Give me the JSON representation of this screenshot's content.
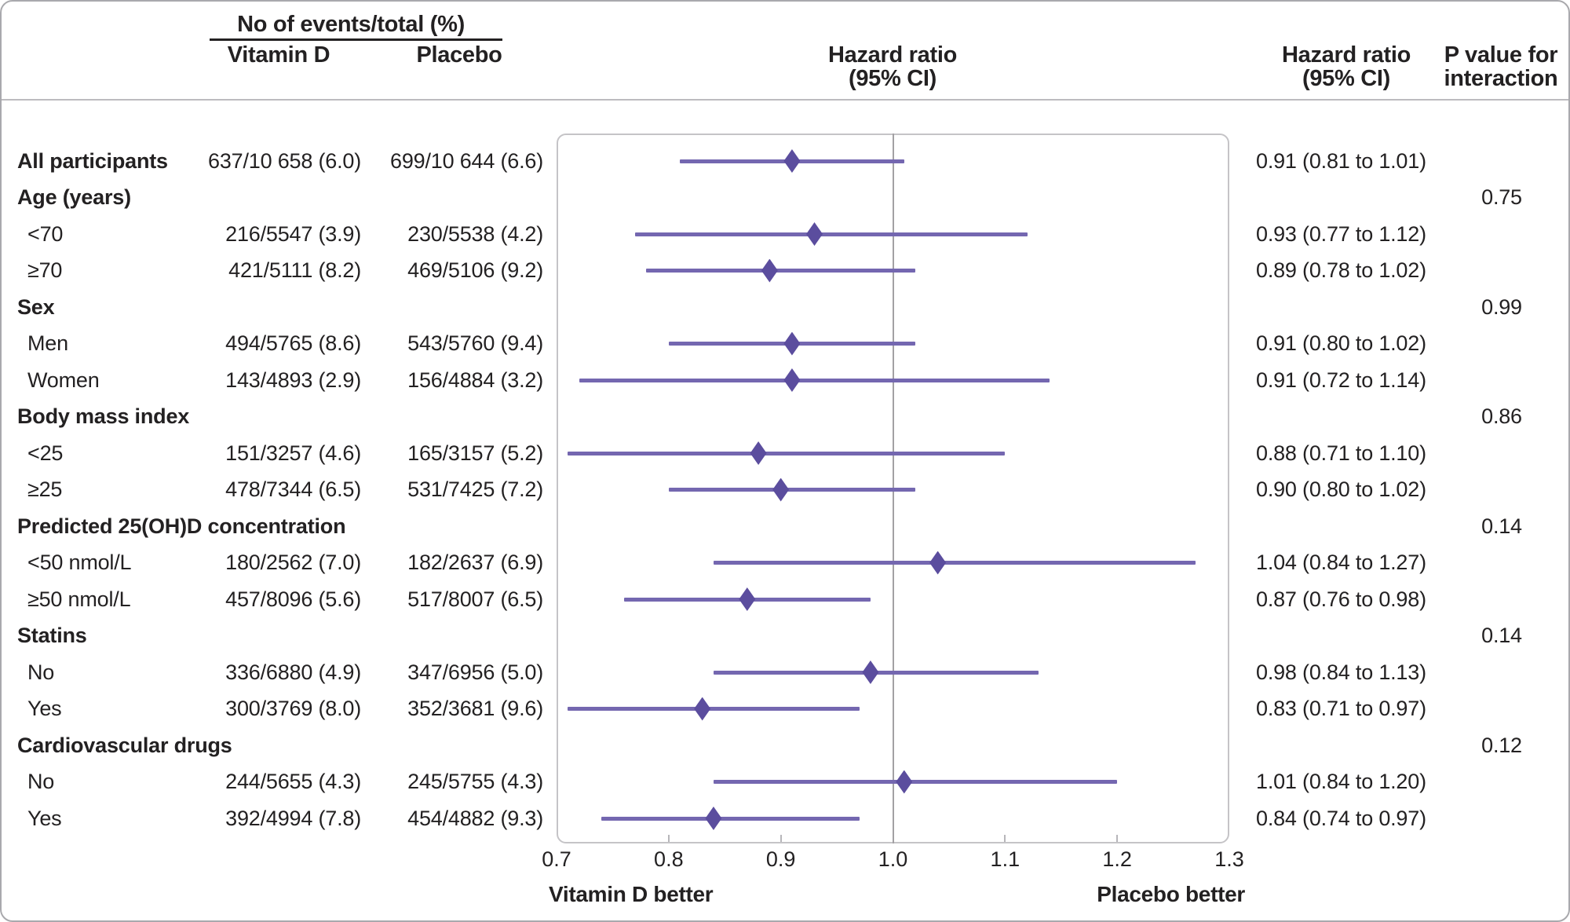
{
  "header": {
    "events_title": "No of events/total (%)",
    "col_vitamin_d": "Vitamin D",
    "col_placebo": "Placebo",
    "plot_title_line1": "Hazard ratio",
    "plot_title_line2": "(95% CI)",
    "hr_col_line1": "Hazard ratio",
    "hr_col_line2": "(95% CI)",
    "p_col_line1": "P value for",
    "p_col_line2": "interaction"
  },
  "colors": {
    "marker": "#5b4d9e",
    "ci_line": "#7467b0",
    "reference_line": "#a3a1a4",
    "plot_border": "#c5c4c7",
    "outer_border": "#a9a9ad",
    "text": "#232122"
  },
  "chart_data": {
    "type": "forest",
    "title": "Hazard ratio (95% CI)",
    "xlim": [
      0.7,
      1.3
    ],
    "tick_values": [
      0.7,
      0.8,
      0.9,
      1.0,
      1.1,
      1.2,
      1.3
    ],
    "tick_labels": [
      "0.7",
      "0.8",
      "0.9",
      "1.0",
      "1.1",
      "1.2",
      "1.3"
    ],
    "tick_marks": [
      0.8,
      0.9,
      1.1,
      1.2
    ],
    "reference_line": 1.0,
    "left_label": "Vitamin D better",
    "right_label": "Placebo better",
    "rows": [
      {
        "type": "data",
        "bold": true,
        "label": "All participants",
        "vitamin_d": "637/10 658 (6.0)",
        "placebo": "699/10 644 (6.6)",
        "hr": 0.91,
        "lo": 0.81,
        "hi": 1.01,
        "hr_text": "0.91 (0.81 to 1.01)",
        "p": ""
      },
      {
        "type": "group",
        "label": "Age (years)",
        "vitamin_d": "",
        "placebo": "",
        "hr_text": "",
        "p": "0.75"
      },
      {
        "type": "data",
        "label": "<70",
        "vitamin_d": "216/5547 (3.9)",
        "placebo": "230/5538 (4.2)",
        "hr": 0.93,
        "lo": 0.77,
        "hi": 1.12,
        "hr_text": "0.93 (0.77 to 1.12)",
        "p": ""
      },
      {
        "type": "data",
        "label": "≥70",
        "vitamin_d": "421/5111 (8.2)",
        "placebo": "469/5106 (9.2)",
        "hr": 0.89,
        "lo": 0.78,
        "hi": 1.02,
        "hr_text": "0.89 (0.78 to 1.02)",
        "p": ""
      },
      {
        "type": "group",
        "label": "Sex",
        "vitamin_d": "",
        "placebo": "",
        "hr_text": "",
        "p": "0.99"
      },
      {
        "type": "data",
        "label": "Men",
        "vitamin_d": "494/5765 (8.6)",
        "placebo": "543/5760 (9.4)",
        "hr": 0.91,
        "lo": 0.8,
        "hi": 1.02,
        "hr_text": "0.91 (0.80 to 1.02)",
        "p": ""
      },
      {
        "type": "data",
        "label": "Women",
        "vitamin_d": "143/4893 (2.9)",
        "placebo": "156/4884 (3.2)",
        "hr": 0.91,
        "lo": 0.72,
        "hi": 1.14,
        "hr_text": "0.91 (0.72 to 1.14)",
        "p": ""
      },
      {
        "type": "group",
        "label": "Body mass index",
        "vitamin_d": "",
        "placebo": "",
        "hr_text": "",
        "p": "0.86"
      },
      {
        "type": "data",
        "label": "<25",
        "vitamin_d": "151/3257 (4.6)",
        "placebo": "165/3157 (5.2)",
        "hr": 0.88,
        "lo": 0.71,
        "hi": 1.1,
        "hr_text": "0.88 (0.71 to 1.10)",
        "p": ""
      },
      {
        "type": "data",
        "label": "≥25",
        "vitamin_d": "478/7344 (6.5)",
        "placebo": "531/7425 (7.2)",
        "hr": 0.9,
        "lo": 0.8,
        "hi": 1.02,
        "hr_text": "0.90 (0.80 to 1.02)",
        "p": ""
      },
      {
        "type": "group",
        "label": "Predicted 25(OH)D concentration",
        "vitamin_d": "",
        "placebo": "",
        "hr_text": "",
        "p": "0.14"
      },
      {
        "type": "data",
        "label": "<50 nmol/L",
        "vitamin_d": "180/2562 (7.0)",
        "placebo": "182/2637 (6.9)",
        "hr": 1.04,
        "lo": 0.84,
        "hi": 1.27,
        "hr_text": "1.04 (0.84 to 1.27)",
        "p": ""
      },
      {
        "type": "data",
        "label": "≥50 nmol/L",
        "vitamin_d": "457/8096 (5.6)",
        "placebo": "517/8007 (6.5)",
        "hr": 0.87,
        "lo": 0.76,
        "hi": 0.98,
        "hr_text": "0.87 (0.76 to 0.98)",
        "p": ""
      },
      {
        "type": "group",
        "label": "Statins",
        "vitamin_d": "",
        "placebo": "",
        "hr_text": "",
        "p": "0.14"
      },
      {
        "type": "data",
        "label": "No",
        "vitamin_d": "336/6880 (4.9)",
        "placebo": "347/6956 (5.0)",
        "hr": 0.98,
        "lo": 0.84,
        "hi": 1.13,
        "hr_text": "0.98 (0.84 to 1.13)",
        "p": ""
      },
      {
        "type": "data",
        "label": "Yes",
        "vitamin_d": "300/3769 (8.0)",
        "placebo": "352/3681 (9.6)",
        "hr": 0.83,
        "lo": 0.71,
        "hi": 0.97,
        "hr_text": "0.83 (0.71 to 0.97)",
        "p": ""
      },
      {
        "type": "group",
        "label": "Cardiovascular drugs",
        "vitamin_d": "",
        "placebo": "",
        "hr_text": "",
        "p": "0.12"
      },
      {
        "type": "data",
        "label": "No",
        "vitamin_d": "244/5655 (4.3)",
        "placebo": "245/5755 (4.3)",
        "hr": 1.01,
        "lo": 0.84,
        "hi": 1.2,
        "hr_text": "1.01 (0.84 to 1.20)",
        "p": ""
      },
      {
        "type": "data",
        "label": "Yes",
        "vitamin_d": "392/4994 (7.8)",
        "placebo": "454/4882 (9.3)",
        "hr": 0.84,
        "lo": 0.74,
        "hi": 0.97,
        "hr_text": "0.84 (0.74 to 0.97)",
        "p": ""
      }
    ]
  }
}
